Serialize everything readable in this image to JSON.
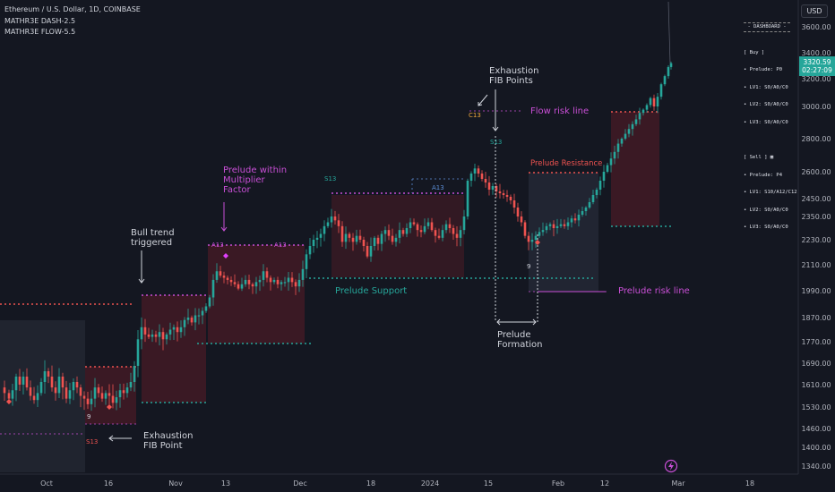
{
  "header": {
    "title": "Ethereum / U.S. Dollar, 1D, COINBASE",
    "indicator1": "MATHR3E DASH-2.5",
    "indicator2": "MATHR3E FLOW-5.5"
  },
  "currency_button": "USD",
  "price_tag": {
    "price": "3320.59",
    "countdown": "02:27:09"
  },
  "dashboard": {
    "title": "- DASHBOARD -",
    "buy": [
      "[ Buy ]",
      "• Prelude: P0",
      "• LV1: S0/A0/C0",
      "• LV2: S0/A0/C0",
      "• LV3: S0/A0/C0"
    ],
    "sell": [
      "[ Sell ] ▦",
      "• Prelude: P4",
      "• LV1: S10/A12/C12",
      "• LV2: S0/A0/C0",
      "• LV3: S0/A0/C0"
    ]
  },
  "colors": {
    "background": "#141721",
    "up": "#26a69a",
    "down": "#ef5350",
    "sell_zone": "#5a1f2c",
    "buy_zone": "#2a2f3d",
    "prelude_magenta": "#c94fd6",
    "annotation_white": "#d1d4dc",
    "support_green": "#26a69a",
    "resistance_red": "#ef5350",
    "exhaustion_red": "#ef5350",
    "c13_orange": "#f2a93b",
    "a13_blue": "#5d8fd8"
  },
  "annotations": {
    "exhaustion_fib_point": [
      "Exhaustion",
      "FIB Point"
    ],
    "bull_trend": [
      "Bull trend",
      "triggered"
    ],
    "prelude_multiplier": [
      "Prelude within",
      "Multiplier",
      "Factor"
    ],
    "exhaustion_fib_points": [
      "Exhaustion",
      "FIB Points"
    ],
    "flow_risk": "Flow risk line",
    "prelude_resistance": "Prelude Resistance",
    "prelude_support": "Prelude Support",
    "prelude_risk": "Prelude risk line",
    "prelude_formation": [
      "Prelude",
      "Formation"
    ]
  },
  "chart_data": {
    "type": "candlestick",
    "symbol": "Ethereum / U.S. Dollar",
    "timeframe": "1D",
    "exchange": "COINBASE",
    "y_ticks": [
      3600,
      3400,
      3200,
      3000,
      2800,
      2600,
      2450,
      2350,
      2230,
      2110,
      1990,
      1870,
      1770,
      1690,
      1610,
      1530,
      1460,
      1400,
      1340
    ],
    "x_ticks": [
      "Oct",
      "16",
      "Nov",
      "13",
      "Dec",
      "18",
      "2024",
      "15",
      "Feb",
      "12",
      "Mar",
      "18"
    ],
    "close_path": [
      [
        1,
        1600
      ],
      [
        5,
        1580
      ],
      [
        10,
        1560
      ],
      [
        14,
        1590
      ],
      [
        18,
        1640
      ],
      [
        22,
        1610
      ],
      [
        26,
        1640
      ],
      [
        30,
        1600
      ],
      [
        34,
        1570
      ],
      [
        38,
        1555
      ],
      [
        42,
        1580
      ],
      [
        46,
        1620
      ],
      [
        50,
        1660
      ],
      [
        54,
        1640
      ],
      [
        58,
        1600
      ],
      [
        62,
        1580
      ],
      [
        66,
        1640
      ],
      [
        70,
        1600
      ],
      [
        74,
        1560
      ],
      [
        78,
        1590
      ],
      [
        82,
        1620
      ],
      [
        86,
        1600
      ],
      [
        90,
        1570
      ],
      [
        94,
        1560
      ],
      [
        98,
        1540
      ],
      [
        102,
        1560
      ],
      [
        106,
        1600
      ],
      [
        110,
        1580
      ],
      [
        114,
        1560
      ],
      [
        118,
        1580
      ],
      [
        122,
        1570
      ],
      [
        126,
        1545
      ],
      [
        130,
        1565
      ],
      [
        134,
        1590
      ],
      [
        138,
        1580
      ],
      [
        142,
        1600
      ],
      [
        146,
        1620
      ],
      [
        150,
        1680
      ],
      [
        154,
        1780
      ],
      [
        158,
        1830
      ],
      [
        162,
        1800
      ],
      [
        166,
        1790
      ],
      [
        170,
        1800
      ],
      [
        174,
        1790
      ],
      [
        178,
        1810
      ],
      [
        182,
        1780
      ],
      [
        186,
        1800
      ],
      [
        190,
        1820
      ],
      [
        194,
        1830
      ],
      [
        198,
        1810
      ],
      [
        202,
        1830
      ],
      [
        206,
        1860
      ],
      [
        210,
        1870
      ],
      [
        214,
        1850
      ],
      [
        218,
        1880
      ],
      [
        222,
        1880
      ],
      [
        226,
        1900
      ],
      [
        230,
        1920
      ],
      [
        234,
        1960
      ],
      [
        238,
        2040
      ],
      [
        242,
        2080
      ],
      [
        246,
        2060
      ],
      [
        250,
        2050
      ],
      [
        254,
        2040
      ],
      [
        258,
        2030
      ],
      [
        262,
        2020
      ],
      [
        266,
        2000
      ],
      [
        270,
        2020
      ],
      [
        274,
        2040
      ],
      [
        278,
        2020
      ],
      [
        282,
        2010
      ],
      [
        286,
        2030
      ],
      [
        290,
        2040
      ],
      [
        294,
        2080
      ],
      [
        298,
        2050
      ],
      [
        302,
        2030
      ],
      [
        306,
        2040
      ],
      [
        310,
        2020
      ],
      [
        314,
        2030
      ],
      [
        318,
        2030
      ],
      [
        322,
        2050
      ],
      [
        326,
        2030
      ],
      [
        330,
        2010
      ],
      [
        334,
        2040
      ],
      [
        338,
        2090
      ],
      [
        342,
        2160
      ],
      [
        346,
        2200
      ],
      [
        350,
        2230
      ],
      [
        354,
        2240
      ],
      [
        358,
        2260
      ],
      [
        362,
        2300
      ],
      [
        366,
        2320
      ],
      [
        370,
        2350
      ],
      [
        374,
        2330
      ],
      [
        378,
        2300
      ],
      [
        382,
        2220
      ],
      [
        386,
        2260
      ],
      [
        390,
        2240
      ],
      [
        394,
        2220
      ],
      [
        398,
        2250
      ],
      [
        402,
        2230
      ],
      [
        406,
        2200
      ],
      [
        410,
        2150
      ],
      [
        414,
        2200
      ],
      [
        418,
        2240
      ],
      [
        422,
        2210
      ],
      [
        426,
        2260
      ],
      [
        430,
        2280
      ],
      [
        434,
        2250
      ],
      [
        438,
        2220
      ],
      [
        442,
        2240
      ],
      [
        446,
        2280
      ],
      [
        450,
        2260
      ],
      [
        454,
        2290
      ],
      [
        458,
        2320
      ],
      [
        462,
        2310
      ],
      [
        466,
        2280
      ],
      [
        470,
        2270
      ],
      [
        474,
        2300
      ],
      [
        478,
        2320
      ],
      [
        482,
        2280
      ],
      [
        486,
        2250
      ],
      [
        490,
        2240
      ],
      [
        494,
        2280
      ],
      [
        498,
        2310
      ],
      [
        502,
        2290
      ],
      [
        506,
        2260
      ],
      [
        510,
        2240
      ],
      [
        514,
        2280
      ],
      [
        518,
        2350
      ],
      [
        522,
        2550
      ],
      [
        526,
        2590
      ],
      [
        530,
        2620
      ],
      [
        534,
        2590
      ],
      [
        538,
        2560
      ],
      [
        542,
        2540
      ],
      [
        546,
        2500
      ],
      [
        550,
        2520
      ],
      [
        554,
        2490
      ],
      [
        558,
        2480
      ],
      [
        562,
        2470
      ],
      [
        566,
        2460
      ],
      [
        570,
        2440
      ],
      [
        574,
        2400
      ],
      [
        578,
        2350
      ],
      [
        582,
        2320
      ],
      [
        586,
        2250
      ],
      [
        590,
        2220
      ],
      [
        594,
        2230
      ],
      [
        598,
        2250
      ],
      [
        602,
        2270
      ],
      [
        606,
        2280
      ],
      [
        610,
        2300
      ],
      [
        614,
        2310
      ],
      [
        618,
        2290
      ],
      [
        622,
        2300
      ],
      [
        626,
        2310
      ],
      [
        630,
        2300
      ],
      [
        634,
        2320
      ],
      [
        638,
        2340
      ],
      [
        642,
        2330
      ],
      [
        646,
        2360
      ],
      [
        650,
        2380
      ],
      [
        654,
        2400
      ],
      [
        658,
        2430
      ],
      [
        662,
        2470
      ],
      [
        666,
        2500
      ],
      [
        670,
        2550
      ],
      [
        674,
        2600
      ],
      [
        678,
        2640
      ],
      [
        682,
        2680
      ],
      [
        686,
        2720
      ],
      [
        690,
        2770
      ],
      [
        694,
        2800
      ],
      [
        698,
        2830
      ],
      [
        702,
        2860
      ],
      [
        706,
        2890
      ],
      [
        710,
        2920
      ],
      [
        714,
        2960
      ],
      [
        718,
        2980
      ],
      [
        722,
        3010
      ],
      [
        726,
        3060
      ],
      [
        730,
        3000
      ],
      [
        734,
        3070
      ],
      [
        738,
        3160
      ],
      [
        742,
        3220
      ],
      [
        746,
        3290
      ],
      [
        749,
        3320
      ]
    ]
  }
}
